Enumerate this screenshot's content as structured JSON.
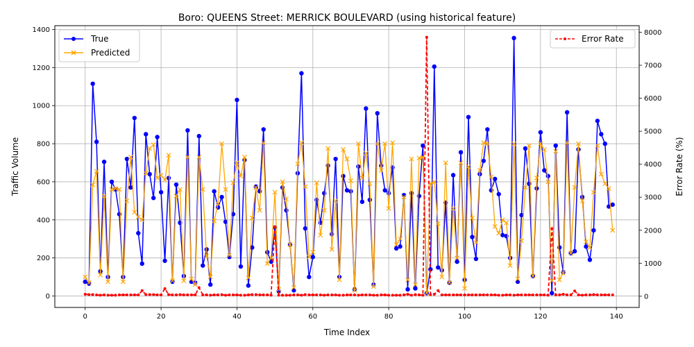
{
  "chart_data": {
    "type": "line",
    "title": "Boro: QUEENS Street: MERRICK BOULEVARD (using historical feature)",
    "xlabel": "Time Index",
    "ylabel": "Traffic Volume",
    "y2label": "Error Rate (%)",
    "xlim": [
      -8,
      146
    ],
    "ylim": [
      -60,
      1420
    ],
    "y2lim": [
      -340,
      8200
    ],
    "xticks": [
      0,
      20,
      40,
      60,
      80,
      100,
      120,
      140
    ],
    "yticks": [
      0,
      200,
      400,
      600,
      800,
      1000,
      1200,
      1400
    ],
    "y2ticks": [
      0,
      1000,
      2000,
      3000,
      4000,
      5000,
      6000,
      7000,
      8000
    ],
    "grid": true,
    "legend_left": [
      "True",
      "Predicted"
    ],
    "legend_right": [
      "Error Rate"
    ],
    "colors": {
      "true": "#0000ff",
      "predicted": "#ffa500",
      "error": "#ff0000"
    },
    "series": [
      {
        "name": "True",
        "axis": "left",
        "values": [
          75,
          65,
          1115,
          810,
          130,
          705,
          100,
          600,
          560,
          430,
          100,
          720,
          570,
          935,
          330,
          170,
          850,
          640,
          515,
          835,
          545,
          185,
          620,
          75,
          585,
          385,
          105,
          870,
          75,
          70,
          840,
          160,
          245,
          60,
          550,
          465,
          520,
          390,
          205,
          430,
          1030,
          155,
          715,
          55,
          255,
          575,
          550,
          875,
          230,
          180,
          360,
          25,
          570,
          450,
          270,
          30,
          645,
          1170,
          355,
          100,
          205,
          505,
          385,
          540,
          685,
          325,
          720,
          100,
          630,
          555,
          550,
          35,
          680,
          495,
          985,
          505,
          60,
          960,
          685,
          555,
          540,
          675,
          250,
          260,
          530,
          35,
          540,
          40,
          525,
          790,
          15,
          140,
          1205,
          150,
          135,
          490,
          70,
          635,
          180,
          755,
          85,
          940,
          310,
          195,
          640,
          710,
          875,
          555,
          615,
          535,
          320,
          315,
          200,
          1355,
          75,
          425,
          775,
          590,
          105,
          565,
          860,
          660,
          630,
          15,
          790,
          255,
          125,
          965,
          225,
          235,
          770,
          520,
          260,
          190,
          345,
          920,
          850,
          800,
          470,
          480
        ]
      },
      {
        "name": "Predicted",
        "axis": "left",
        "values": [
          100,
          70,
          585,
          655,
          110,
          525,
          75,
          560,
          565,
          560,
          75,
          500,
          730,
          440,
          415,
          400,
          645,
          775,
          795,
          620,
          635,
          610,
          740,
          80,
          525,
          560,
          80,
          730,
          90,
          60,
          730,
          560,
          210,
          100,
          395,
          485,
          800,
          560,
          215,
          595,
          700,
          630,
          730,
          95,
          410,
          570,
          450,
          805,
          170,
          200,
          545,
          35,
          600,
          510,
          270,
          45,
          695,
          805,
          575,
          205,
          230,
          595,
          320,
          450,
          775,
          245,
          500,
          85,
          770,
          720,
          605,
          30,
          800,
          620,
          750,
          590,
          50,
          800,
          660,
          800,
          460,
          805,
          270,
          300,
          520,
          85,
          720,
          60,
          725,
          730,
          15,
          590,
          600,
          380,
          100,
          700,
          70,
          460,
          200,
          700,
          40,
          680,
          410,
          280,
          660,
          805,
          800,
          625,
          365,
          330,
          400,
          385,
          160,
          800,
          90,
          290,
          570,
          790,
          105,
          620,
          800,
          770,
          600,
          80,
          760,
          85,
          120,
          805,
          225,
          570,
          800,
          500,
          285,
          255,
          545,
          790,
          640,
          590,
          565,
          345
        ]
      },
      {
        "name": "Error Rate",
        "axis": "right",
        "values": [
          60,
          50,
          50,
          40,
          30,
          40,
          30,
          30,
          30,
          40,
          40,
          40,
          40,
          40,
          40,
          170,
          50,
          50,
          50,
          40,
          40,
          230,
          50,
          40,
          40,
          50,
          40,
          40,
          40,
          40,
          260,
          40,
          40,
          30,
          40,
          40,
          50,
          30,
          40,
          40,
          40,
          30,
          30,
          40,
          50,
          50,
          40,
          40,
          40,
          30,
          2100,
          30,
          30,
          30,
          30,
          40,
          40,
          30,
          50,
          40,
          40,
          40,
          40,
          30,
          40,
          40,
          40,
          30,
          30,
          40,
          40,
          40,
          30,
          40,
          40,
          40,
          30,
          30,
          40,
          40,
          30,
          30,
          30,
          30,
          40,
          60,
          30,
          50,
          40,
          30,
          7850,
          50,
          60,
          170,
          40,
          40,
          40,
          40,
          40,
          40,
          40,
          40,
          40,
          40,
          40,
          40,
          40,
          40,
          40,
          30,
          30,
          40,
          40,
          30,
          40,
          40,
          40,
          40,
          40,
          40,
          40,
          40,
          30,
          2050,
          40,
          40,
          60,
          40,
          40,
          160,
          40,
          30,
          40,
          40,
          50,
          40,
          40,
          40,
          40,
          40
        ]
      }
    ]
  }
}
